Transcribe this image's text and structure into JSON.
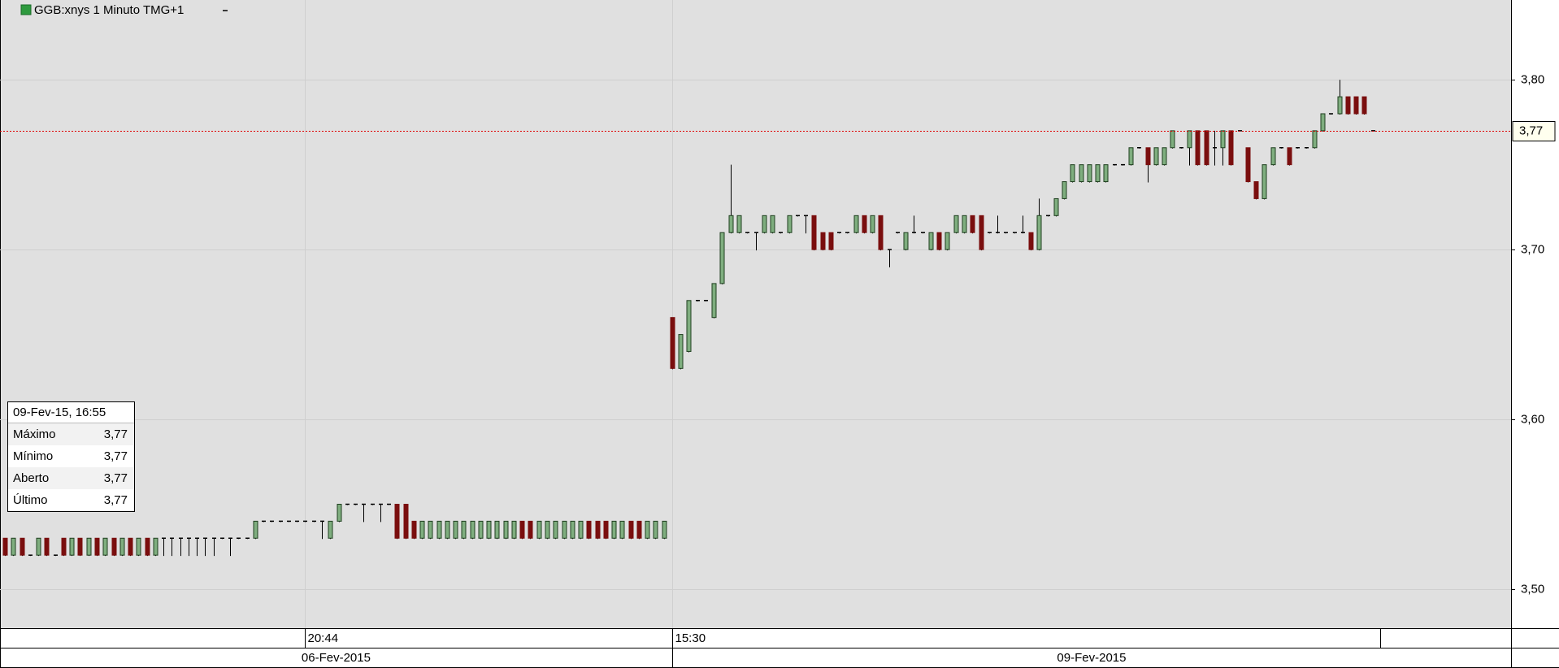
{
  "chart_data": {
    "type": "candlestick",
    "title": "GGB:xnys 1 Minuto TMG+1",
    "ylim": [
      3.477,
      3.847
    ],
    "yticks": [
      {
        "value": 3.5,
        "label": "3,50"
      },
      {
        "value": 3.6,
        "label": "3,60"
      },
      {
        "value": 3.7,
        "label": "3,70"
      },
      {
        "value": 3.8,
        "label": "3,80"
      }
    ],
    "xlim": [
      -0.6,
      180.6
    ],
    "xticks": [
      {
        "value": 36,
        "label": "20:44"
      },
      {
        "value": 80,
        "label": "15:30"
      }
    ],
    "date_labels": [
      "06-Fev-2015",
      "09-Fev-2015"
    ],
    "last_price": {
      "value": 3.77,
      "label": "3,77"
    },
    "grid": true,
    "up_color": "#7fae7f",
    "down_color": "#7a0e0e",
    "open": [
      3.53,
      3.52,
      3.53,
      3.52,
      3.52,
      3.53,
      3.52,
      3.53,
      3.52,
      3.53,
      3.52,
      3.53,
      3.52,
      3.53,
      3.52,
      3.53,
      3.52,
      3.53,
      3.52,
      3.53,
      3.53,
      3.53,
      3.53,
      3.53,
      3.53,
      3.53,
      3.53,
      3.53,
      3.53,
      3.53,
      3.53,
      3.54,
      3.54,
      3.54,
      3.54,
      3.54,
      3.54,
      3.54,
      3.54,
      3.53,
      3.54,
      3.55,
      3.55,
      3.55,
      3.55,
      3.55,
      3.55,
      3.55,
      3.55,
      3.54,
      3.53,
      3.53,
      3.53,
      3.53,
      3.53,
      3.53,
      3.53,
      3.53,
      3.53,
      3.53,
      3.53,
      3.53,
      3.54,
      3.54,
      3.53,
      3.53,
      3.53,
      3.53,
      3.53,
      3.53,
      3.54,
      3.54,
      3.54,
      3.53,
      3.53,
      3.54,
      3.54,
      3.53,
      3.53,
      3.53,
      3.66,
      3.63,
      3.64,
      3.67,
      3.67,
      3.66,
      3.68,
      3.71,
      3.71,
      3.71,
      3.71,
      3.71,
      3.71,
      3.71,
      3.71,
      3.72,
      3.72,
      3.72,
      3.71,
      3.71,
      3.71,
      3.71,
      3.71,
      3.72,
      3.71,
      3.72,
      3.7,
      3.71,
      3.7,
      3.71,
      3.71,
      3.7,
      3.71,
      3.7,
      3.71,
      3.71,
      3.72,
      3.72,
      3.71,
      3.71,
      3.71,
      3.71,
      3.71,
      3.71,
      3.7,
      3.72,
      3.72,
      3.73,
      3.74,
      3.74,
      3.74,
      3.74,
      3.74,
      3.75,
      3.75,
      3.75,
      3.76,
      3.76,
      3.75,
      3.75,
      3.76,
      3.76,
      3.76,
      3.77,
      3.77,
      3.76,
      3.76,
      3.77,
      3.77,
      3.76,
      3.74,
      3.73,
      3.75,
      3.76,
      3.76,
      3.76,
      3.76,
      3.76,
      3.77,
      3.78,
      3.78,
      3.79,
      3.79,
      3.79,
      3.77
    ],
    "high": [
      3.53,
      3.53,
      3.53,
      3.52,
      3.53,
      3.53,
      3.52,
      3.53,
      3.53,
      3.53,
      3.53,
      3.53,
      3.53,
      3.53,
      3.53,
      3.53,
      3.53,
      3.53,
      3.53,
      3.53,
      3.53,
      3.53,
      3.53,
      3.53,
      3.53,
      3.53,
      3.53,
      3.53,
      3.53,
      3.53,
      3.54,
      3.54,
      3.54,
      3.54,
      3.54,
      3.54,
      3.54,
      3.54,
      3.54,
      3.54,
      3.55,
      3.55,
      3.55,
      3.55,
      3.55,
      3.55,
      3.55,
      3.55,
      3.55,
      3.54,
      3.54,
      3.54,
      3.54,
      3.54,
      3.54,
      3.54,
      3.54,
      3.54,
      3.54,
      3.54,
      3.54,
      3.54,
      3.54,
      3.54,
      3.54,
      3.54,
      3.54,
      3.54,
      3.54,
      3.54,
      3.54,
      3.54,
      3.54,
      3.54,
      3.54,
      3.54,
      3.54,
      3.54,
      3.54,
      3.54,
      3.66,
      3.65,
      3.67,
      3.67,
      3.67,
      3.68,
      3.71,
      3.75,
      3.72,
      3.71,
      3.71,
      3.72,
      3.72,
      3.71,
      3.72,
      3.72,
      3.72,
      3.72,
      3.71,
      3.71,
      3.71,
      3.71,
      3.72,
      3.72,
      3.72,
      3.72,
      3.7,
      3.71,
      3.71,
      3.72,
      3.71,
      3.71,
      3.71,
      3.71,
      3.72,
      3.72,
      3.72,
      3.72,
      3.71,
      3.72,
      3.71,
      3.71,
      3.72,
      3.71,
      3.73,
      3.72,
      3.73,
      3.74,
      3.75,
      3.75,
      3.75,
      3.75,
      3.75,
      3.75,
      3.75,
      3.76,
      3.76,
      3.76,
      3.76,
      3.76,
      3.77,
      3.76,
      3.77,
      3.77,
      3.77,
      3.77,
      3.77,
      3.77,
      3.77,
      3.76,
      3.74,
      3.75,
      3.76,
      3.76,
      3.76,
      3.76,
      3.76,
      3.77,
      3.78,
      3.78,
      3.8,
      3.79,
      3.79,
      3.79,
      3.77
    ],
    "low": [
      3.52,
      3.52,
      3.52,
      3.52,
      3.52,
      3.52,
      3.52,
      3.52,
      3.52,
      3.52,
      3.52,
      3.52,
      3.52,
      3.52,
      3.52,
      3.52,
      3.52,
      3.52,
      3.52,
      3.52,
      3.52,
      3.52,
      3.52,
      3.52,
      3.52,
      3.52,
      3.53,
      3.52,
      3.53,
      3.53,
      3.53,
      3.54,
      3.54,
      3.54,
      3.54,
      3.54,
      3.54,
      3.54,
      3.53,
      3.53,
      3.54,
      3.55,
      3.55,
      3.54,
      3.55,
      3.54,
      3.55,
      3.53,
      3.53,
      3.53,
      3.53,
      3.53,
      3.53,
      3.53,
      3.53,
      3.53,
      3.53,
      3.53,
      3.53,
      3.53,
      3.53,
      3.53,
      3.53,
      3.53,
      3.53,
      3.53,
      3.53,
      3.53,
      3.53,
      3.53,
      3.53,
      3.53,
      3.53,
      3.53,
      3.53,
      3.53,
      3.53,
      3.53,
      3.53,
      3.53,
      3.63,
      3.63,
      3.64,
      3.67,
      3.67,
      3.66,
      3.68,
      3.71,
      3.71,
      3.71,
      3.7,
      3.71,
      3.71,
      3.71,
      3.71,
      3.72,
      3.71,
      3.7,
      3.7,
      3.7,
      3.71,
      3.71,
      3.71,
      3.71,
      3.71,
      3.7,
      3.69,
      3.71,
      3.7,
      3.71,
      3.71,
      3.7,
      3.7,
      3.7,
      3.71,
      3.71,
      3.71,
      3.7,
      3.71,
      3.71,
      3.71,
      3.71,
      3.71,
      3.7,
      3.7,
      3.72,
      3.72,
      3.73,
      3.74,
      3.74,
      3.74,
      3.74,
      3.74,
      3.75,
      3.75,
      3.75,
      3.76,
      3.74,
      3.75,
      3.75,
      3.76,
      3.76,
      3.75,
      3.75,
      3.75,
      3.75,
      3.75,
      3.75,
      3.77,
      3.74,
      3.73,
      3.73,
      3.75,
      3.76,
      3.75,
      3.76,
      3.76,
      3.76,
      3.77,
      3.78,
      3.78,
      3.78,
      3.78,
      3.78,
      3.77
    ],
    "close": [
      3.52,
      3.53,
      3.52,
      3.52,
      3.53,
      3.52,
      3.52,
      3.52,
      3.53,
      3.52,
      3.53,
      3.52,
      3.53,
      3.52,
      3.53,
      3.52,
      3.53,
      3.52,
      3.53,
      3.53,
      3.53,
      3.53,
      3.53,
      3.53,
      3.53,
      3.53,
      3.53,
      3.53,
      3.53,
      3.53,
      3.54,
      3.54,
      3.54,
      3.54,
      3.54,
      3.54,
      3.54,
      3.54,
      3.54,
      3.54,
      3.55,
      3.55,
      3.55,
      3.55,
      3.55,
      3.55,
      3.55,
      3.53,
      3.53,
      3.53,
      3.54,
      3.54,
      3.54,
      3.54,
      3.54,
      3.54,
      3.54,
      3.54,
      3.54,
      3.54,
      3.54,
      3.54,
      3.53,
      3.53,
      3.54,
      3.54,
      3.54,
      3.54,
      3.54,
      3.54,
      3.53,
      3.53,
      3.53,
      3.54,
      3.54,
      3.53,
      3.53,
      3.54,
      3.54,
      3.54,
      3.63,
      3.65,
      3.67,
      3.67,
      3.67,
      3.68,
      3.71,
      3.72,
      3.72,
      3.71,
      3.71,
      3.72,
      3.72,
      3.71,
      3.72,
      3.72,
      3.72,
      3.7,
      3.7,
      3.7,
      3.71,
      3.71,
      3.72,
      3.71,
      3.72,
      3.7,
      3.7,
      3.71,
      3.71,
      3.71,
      3.71,
      3.71,
      3.7,
      3.71,
      3.72,
      3.72,
      3.71,
      3.7,
      3.71,
      3.71,
      3.71,
      3.71,
      3.71,
      3.7,
      3.72,
      3.72,
      3.73,
      3.74,
      3.75,
      3.75,
      3.75,
      3.75,
      3.75,
      3.75,
      3.75,
      3.76,
      3.76,
      3.75,
      3.76,
      3.76,
      3.77,
      3.76,
      3.77,
      3.75,
      3.75,
      3.76,
      3.77,
      3.75,
      3.77,
      3.74,
      3.73,
      3.75,
      3.76,
      3.76,
      3.75,
      3.76,
      3.76,
      3.77,
      3.78,
      3.78,
      3.79,
      3.78,
      3.78,
      3.78,
      3.77
    ]
  },
  "info_box": {
    "title": "09-Fev-15, 16:55",
    "rows": [
      [
        "Máximo",
        "3,77"
      ],
      [
        "Mínimo",
        "3,77"
      ],
      [
        "Aberto",
        "3,77"
      ],
      [
        "Último",
        "3,77"
      ]
    ]
  }
}
